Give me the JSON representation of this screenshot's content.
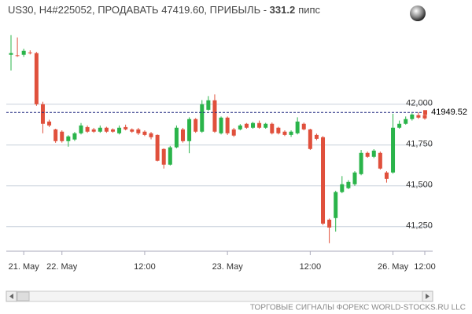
{
  "chart_data": {
    "type": "candlestick",
    "title": "US30, H4#225052, ПРОДАВАТЬ 47419.60, ПРИБЫЛЬ - ",
    "profit": "331.2",
    "profit_unit": "пипс",
    "footer": "ТОРГОВЫЕ СИГНАЛЫ ФОРЕКС WORLD-STOCKS.RU LLC",
    "categories": [
      null,
      null,
      "21. May",
      null,
      null,
      null,
      null,
      null,
      "22. May",
      null,
      null,
      null,
      null,
      null,
      null,
      null,
      null,
      null,
      null,
      null,
      null,
      "12:00",
      null,
      null,
      null,
      null,
      null,
      null,
      null,
      null,
      null,
      null,
      null,
      null,
      "23. May",
      null,
      null,
      null,
      null,
      null,
      null,
      null,
      null,
      null,
      null,
      null,
      null,
      "12:00",
      null,
      null,
      null,
      null,
      null,
      null,
      null,
      null,
      null,
      null,
      null,
      null,
      "26. May",
      null,
      null,
      null,
      null,
      "12:00"
    ],
    "open": [
      42303,
      42300,
      42303,
      42317,
      42313,
      42000,
      41894,
      41846,
      41832,
      41774,
      41784,
      41822,
      41860,
      41846,
      41832,
      41856,
      41846,
      41822,
      41860,
      41846,
      41846,
      41832,
      41822,
      41812,
      41726,
      41630,
      41736,
      41846,
      41774,
      41909,
      41832,
      41966,
      42024,
      41822,
      41918,
      41846,
      41846,
      41880,
      41856,
      41885,
      41856,
      41880,
      41856,
      41832,
      41812,
      41822,
      41880,
      41846,
      41812,
      41798,
      41293,
      41303,
      41462,
      41486,
      41510,
      41572,
      41702,
      41678,
      41702,
      41582,
      41582,
      41856,
      41880,
      41909,
      41933,
      41933
    ],
    "high": [
      42423,
      42409,
      42340,
      42330,
      42320,
      42015,
      41905,
      41850,
      41840,
      41810,
      41830,
      41885,
      41870,
      41855,
      41870,
      41862,
      41852,
      41870,
      41875,
      41852,
      41855,
      41840,
      41830,
      41815,
      41730,
      41745,
      41870,
      41855,
      41920,
      41915,
      42025,
      42050,
      42060,
      41925,
      41925,
      41855,
      41878,
      41885,
      41892,
      41900,
      41886,
      41888,
      41862,
      41840,
      41840,
      41920,
      41888,
      41850,
      41820,
      41805,
      41300,
      41470,
      41560,
      41535,
      41590,
      41720,
      41710,
      41725,
      41710,
      41590,
      41942,
      41900,
      41925,
      41945,
      41950,
      41945
    ],
    "low": [
      42207,
      42290,
      42290,
      42305,
      41990,
      41822,
      41860,
      41764,
      41765,
      41740,
      41775,
      41815,
      41825,
      41825,
      41825,
      41825,
      41826,
      41815,
      41840,
      41825,
      41812,
      41805,
      41785,
      41650,
      41606,
      41625,
      41730,
      41765,
      41700,
      41825,
      41825,
      41960,
      41825,
      41815,
      41812,
      41800,
      41840,
      41850,
      41850,
      41850,
      41850,
      41815,
      41815,
      41805,
      41800,
      41815,
      41840,
      41720,
      41780,
      41260,
      41149,
      41220,
      41455,
      41480,
      41500,
      41565,
      41672,
      41670,
      41600,
      41520,
      41575,
      41850,
      41875,
      41900,
      41910,
      41905
    ],
    "close": [
      42313,
      42298,
      42327,
      42315,
      42000,
      41880,
      41870,
      41774,
      41774,
      41803,
      41822,
      41870,
      41832,
      41832,
      41856,
      41832,
      41832,
      41856,
      41846,
      41832,
      41822,
      41812,
      41798,
      41654,
      41630,
      41736,
      41856,
      41774,
      41909,
      41832,
      42000,
      42024,
      41832,
      41918,
      41822,
      41808,
      41870,
      41856,
      41885,
      41856,
      41880,
      41822,
      41822,
      41812,
      41832,
      41894,
      41846,
      41726,
      41788,
      41269,
      41245,
      41462,
      41510,
      41524,
      41582,
      41702,
      41678,
      41716,
      41606,
      41543,
      41856,
      41880,
      41909,
      41937,
      41918,
      41913
    ],
    "up_color": "#2ab44a",
    "down_color": "#e0503c",
    "current_price": 41949.52,
    "ylim": [
      41100,
      42470
    ],
    "yticks": [
      {
        "value": 41250,
        "label": "41,250"
      },
      {
        "value": 41500,
        "label": "41,500"
      },
      {
        "value": 41750,
        "label": "41,750"
      },
      {
        "value": 42000,
        "label": "42,000"
      }
    ],
    "grid": true
  }
}
